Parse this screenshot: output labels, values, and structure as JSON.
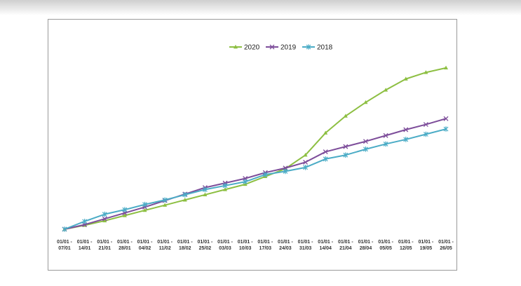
{
  "chart_data": {
    "type": "line",
    "title": "",
    "xlabel": "",
    "ylabel": "",
    "y_axis_visible": false,
    "grid": false,
    "legend_position": "top",
    "x": [
      "01/01 - 07/01",
      "01/01 - 14/01",
      "01/01 - 21/01",
      "01/01 - 28/01",
      "01/01 - 04/02",
      "01/01 - 11/02",
      "01/01 - 18/02",
      "01/01 - 25/02",
      "01/01 - 03/03",
      "01/01 - 10/03",
      "01/01 - 17/03",
      "01/01 - 24/03",
      "01/01 - 31/03",
      "01/01 - 14/04",
      "01/01 - 21/04",
      "01/01 - 28/04",
      "01/01 - 05/05",
      "01/01 - 12/05",
      "01/01 - 19/05",
      "01/01 - 26/05"
    ],
    "x_label_lines": [
      [
        "01/01 -",
        "07/01"
      ],
      [
        "01/01 -",
        "14/01"
      ],
      [
        "01/01 -",
        "21/01"
      ],
      [
        "01/01 -",
        "28/01"
      ],
      [
        "01/01 -",
        "04/02"
      ],
      [
        "01/01 -",
        "11/02"
      ],
      [
        "01/01 -",
        "18/02"
      ],
      [
        "01/01 -",
        "25/02"
      ],
      [
        "01/01 -",
        "03/03"
      ],
      [
        "01/01 -",
        "10/03"
      ],
      [
        "01/01 -",
        "17/03"
      ],
      [
        "01/01 -",
        "24/03"
      ],
      [
        "01/01 -",
        "31/03"
      ],
      [
        "01/01 -",
        "14/04"
      ],
      [
        "01/01 -",
        "21/04"
      ],
      [
        "01/01 -",
        "28/04"
      ],
      [
        "01/01 -",
        "05/05"
      ],
      [
        "01/01 -",
        "12/05"
      ],
      [
        "01/01 -",
        "19/05"
      ],
      [
        "01/01 -",
        "26/05"
      ]
    ],
    "ylim": [
      0,
      250
    ],
    "series": [
      {
        "name": "2020",
        "color": "#8dbf42",
        "marker": "triangle",
        "values": [
          0,
          6,
          13,
          21,
          29,
          37,
          45,
          53,
          61,
          69,
          81,
          93,
          114,
          148,
          174,
          195,
          214,
          231,
          241,
          248
        ]
      },
      {
        "name": "2019",
        "color": "#7d4d9a",
        "marker": "x",
        "values": [
          0,
          7,
          16,
          25,
          34,
          44,
          54,
          64,
          71,
          78,
          87,
          94,
          103,
          119,
          127,
          135,
          144,
          153,
          161,
          170
        ]
      },
      {
        "name": "2018",
        "color": "#4bacc6",
        "marker": "star",
        "values": [
          0,
          12,
          23,
          30,
          38,
          45,
          53,
          61,
          67,
          73,
          84,
          89,
          95,
          108,
          114,
          123,
          131,
          138,
          146,
          154
        ]
      }
    ]
  }
}
